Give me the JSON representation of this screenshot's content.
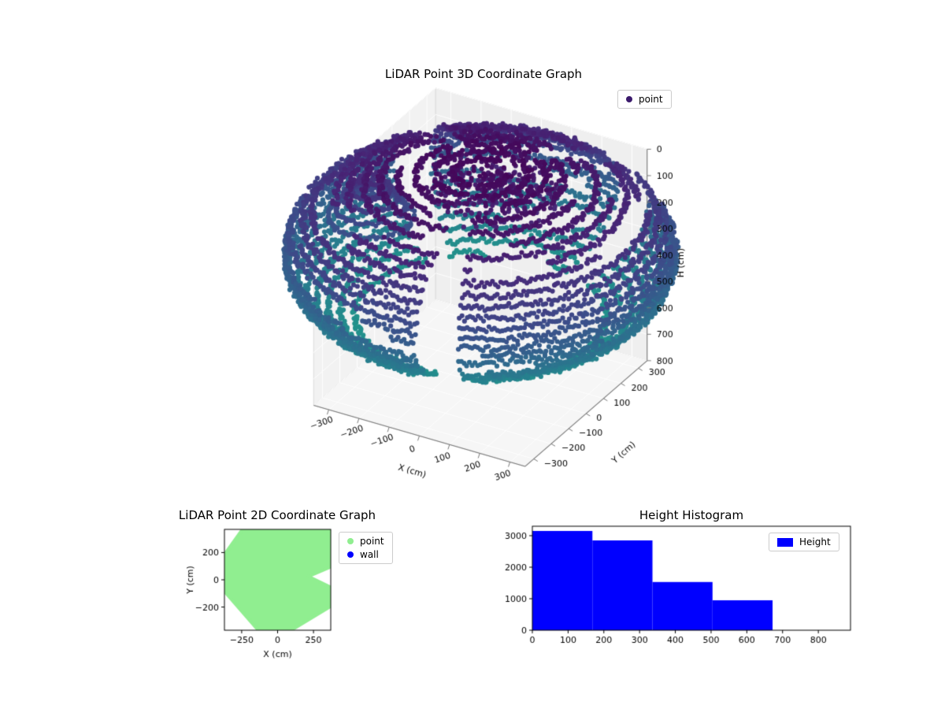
{
  "figure": {
    "background": "#ffffff"
  },
  "chart_data": [
    {
      "id": "lidar3d",
      "type": "scatter",
      "projection": "3d",
      "title": "LiDAR Point 3D Coordinate Graph",
      "xlabel": "X (cm)",
      "ylabel": "Y (cm)",
      "zlabel": "H (cm)",
      "xticks": [
        -300,
        -200,
        -100,
        0,
        100,
        200,
        300
      ],
      "yticks": [
        -300,
        -200,
        -100,
        0,
        100,
        200,
        300
      ],
      "zticks": [
        0,
        100,
        200,
        300,
        400,
        500,
        600,
        700,
        800
      ],
      "xlim": [
        -350,
        350
      ],
      "ylim": [
        -350,
        350
      ],
      "zlim": [
        0,
        800
      ],
      "z_axis_inverted": true,
      "colormap": "viridis",
      "legend": [
        {
          "label": "point",
          "color": "#3b1a6c"
        }
      ],
      "point_cloud": {
        "description": "Dense LiDAR scan rings forming a bowl/dome; color encodes height H (dark purple = low H near 0, teal = high H near 550-620)",
        "rings": 24,
        "sphere_radius_cm": 560,
        "polar_angle_deg": [
          8,
          140
        ],
        "height_range_cm": [
          5,
          620
        ],
        "apex_cluster": {
          "center_xy_cm": [
            30,
            30
          ],
          "radius_cm": 200,
          "height_range_cm": [
            0,
            110
          ]
        },
        "side_cluster": {
          "center_xy_cm": [
            -340,
            -40
          ],
          "radius_range_cm": [
            35,
            125
          ],
          "height_range_cm": [
            120,
            260
          ]
        }
      }
    },
    {
      "id": "lidar2d",
      "type": "scatter",
      "title": "LiDAR Point 2D Coordinate Graph",
      "xlabel": "X (cm)",
      "ylabel": "Y (cm)",
      "xticks": [
        -250,
        0,
        250
      ],
      "yticks": [
        -200,
        0,
        200
      ],
      "xlim": [
        -370,
        370
      ],
      "ylim": [
        -370,
        370
      ],
      "legend": [
        {
          "label": "point",
          "color": "#90ee90"
        },
        {
          "label": "wall",
          "color": "#0000ff"
        }
      ],
      "region_outline": [
        [
          -245,
          370
        ],
        [
          370,
          370
        ],
        [
          370,
          95
        ],
        [
          215,
          25
        ],
        [
          370,
          -55
        ],
        [
          370,
          -195
        ],
        [
          95,
          -370
        ],
        [
          -135,
          -370
        ],
        [
          -370,
          -85
        ],
        [
          -370,
          185
        ]
      ]
    },
    {
      "id": "height_histogram",
      "type": "bar",
      "title": "Height Histogram",
      "xlabel": "",
      "ylabel": "",
      "bin_edges": [
        0,
        168,
        336,
        504,
        672
      ],
      "counts": [
        3150,
        2850,
        1530,
        950
      ],
      "xticks": [
        0,
        100,
        200,
        300,
        400,
        500,
        600,
        700,
        800
      ],
      "yticks": [
        0,
        1000,
        2000,
        3000
      ],
      "xlim": [
        0,
        890
      ],
      "ylim": [
        0,
        3300
      ],
      "bar_color": "#0000ff",
      "legend": [
        {
          "label": "Height",
          "color": "#0000ff"
        }
      ]
    }
  ]
}
